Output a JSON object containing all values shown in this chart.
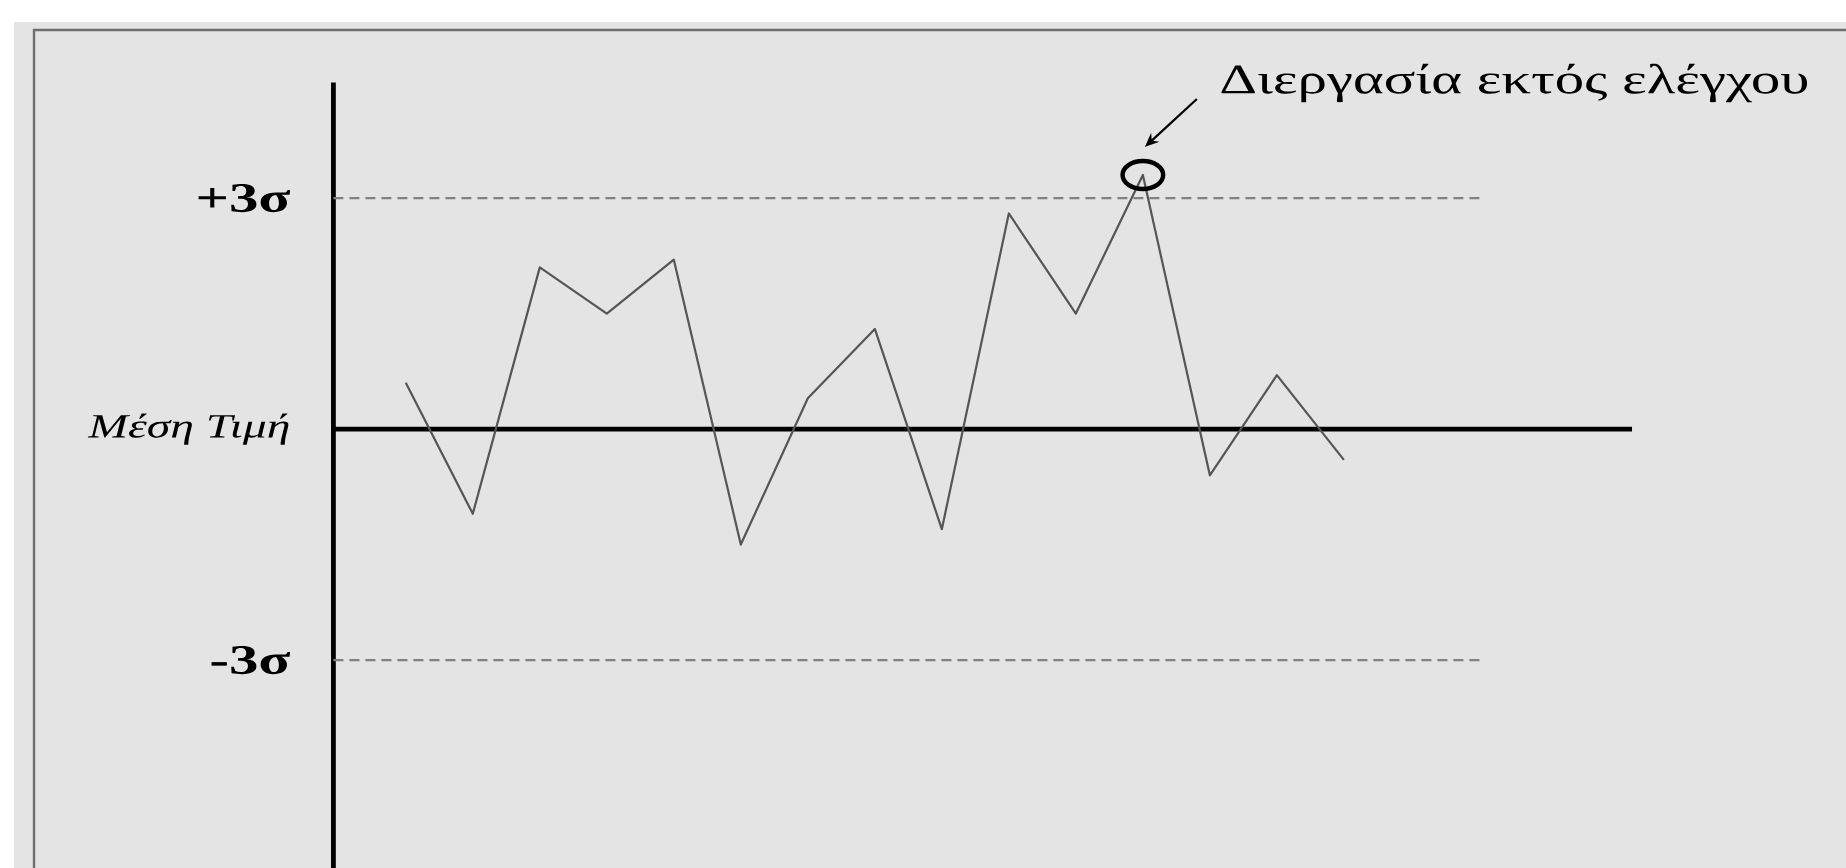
{
  "chart_data": {
    "type": "line",
    "categories": [
      null,
      null,
      null,
      null,
      null,
      null,
      null,
      null,
      null,
      null,
      null,
      null,
      null,
      null,
      null
    ],
    "ylim": [
      -5.7,
      4.5
    ],
    "yticks": [
      {
        "value": -3,
        "label": "-3σ"
      },
      {
        "value": 0,
        "label": "Μέση Τιμή"
      },
      {
        "value": 3,
        "label": "+3σ"
      }
    ],
    "tick_labels": "y",
    "series": [
      {
        "color": "#555555",
        "values": [
          0.6,
          -1.1,
          2.1,
          1.5,
          2.2,
          -1.5,
          0.4,
          1.3,
          -1.3,
          2.8,
          1.5,
          3.3,
          -0.6,
          0.7,
          -0.4
        ]
      },
      {
        "type": "scatter",
        "marker": "circle",
        "color": "#000000",
        "values": [
          null,
          null,
          null,
          null,
          null,
          null,
          null,
          null,
          null,
          null,
          null,
          3.3,
          null,
          null,
          null
        ]
      }
    ],
    "ref_lines": [
      {
        "axis": "y",
        "value": 3,
        "color": "#808080",
        "line_style": "dashed"
      },
      {
        "axis": "y",
        "value": 0,
        "color": "#000000",
        "line_style": "solid"
      },
      {
        "axis": "y",
        "value": -3,
        "color": "#808080",
        "line_style": "dashed"
      }
    ],
    "annotations": [
      "Διεργασία εκτός ελέγχου"
    ]
  }
}
